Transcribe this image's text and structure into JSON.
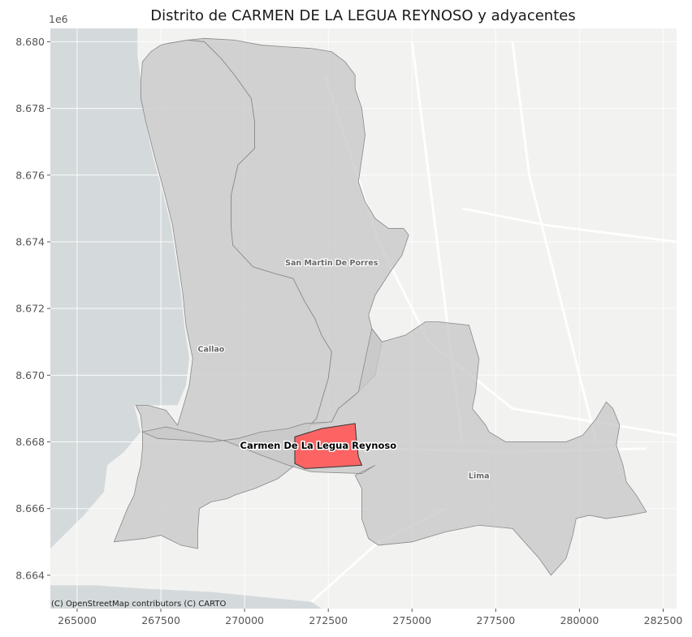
{
  "title": "Distrito de CARMEN DE LA LEGUA REYNOSO y adyacentes",
  "y_offset_label": "1e6",
  "attribution": "(C) OpenStreetMap contributors (C) CARTO",
  "axes": {
    "x_range": [
      264200,
      282900
    ],
    "y_range": [
      8663000,
      8680400
    ],
    "x_ticks": [
      {
        "value": 265000,
        "label": "265000"
      },
      {
        "value": 267500,
        "label": "267500"
      },
      {
        "value": 270000,
        "label": "270000"
      },
      {
        "value": 272500,
        "label": "272500"
      },
      {
        "value": 275000,
        "label": "275000"
      },
      {
        "value": 277500,
        "label": "277500"
      },
      {
        "value": 280000,
        "label": "280000"
      },
      {
        "value": 282500,
        "label": "282500"
      }
    ],
    "y_ticks": [
      {
        "value": 8664000,
        "label": "8.664"
      },
      {
        "value": 8666000,
        "label": "8.666"
      },
      {
        "value": 8668000,
        "label": "8.668"
      },
      {
        "value": 8670000,
        "label": "8.670"
      },
      {
        "value": 8672000,
        "label": "8.672"
      },
      {
        "value": 8674000,
        "label": "8.674"
      },
      {
        "value": 8676000,
        "label": "8.676"
      },
      {
        "value": 8678000,
        "label": "8.678"
      },
      {
        "value": 8680000,
        "label": "8.680"
      }
    ]
  },
  "colors": {
    "axes_bg": "#e5e5e5",
    "sea": "#d4dadc",
    "land": "#f2f2f1",
    "district_fill": "#c8c8c8",
    "district_edge": "#888888",
    "highlight_fill": "#ff5a5a",
    "highlight_edge": "#333333"
  },
  "districts": [
    {
      "name": "Callao",
      "label_at": [
        269000,
        8670700
      ],
      "coords": [
        [
          266100,
          8665000
        ],
        [
          266300,
          8665500
        ],
        [
          266500,
          8666000
        ],
        [
          266700,
          8666400
        ],
        [
          266800,
          8666900
        ],
        [
          266900,
          8667300
        ],
        [
          266950,
          8667800
        ],
        [
          266950,
          8668300
        ],
        [
          266900,
          8668800
        ],
        [
          266750,
          8669100
        ],
        [
          267100,
          8669100
        ],
        [
          267650,
          8668950
        ],
        [
          268000,
          8668500
        ],
        [
          268150,
          8669000
        ],
        [
          268350,
          8669700
        ],
        [
          268450,
          8670500
        ],
        [
          268250,
          8671500
        ],
        [
          268150,
          8672500
        ],
        [
          268000,
          8673500
        ],
        [
          267850,
          8674500
        ],
        [
          267600,
          8675500
        ],
        [
          267300,
          8676600
        ],
        [
          267050,
          8677600
        ],
        [
          266900,
          8678300
        ],
        [
          266900,
          8678800
        ],
        [
          266950,
          8679400
        ],
        [
          267200,
          8679700
        ],
        [
          267500,
          8679900
        ],
        [
          267700,
          8679950
        ],
        [
          268300,
          8680050
        ],
        [
          268800,
          8680000
        ],
        [
          269300,
          8679500
        ],
        [
          269700,
          8679000
        ],
        [
          270200,
          8678300
        ],
        [
          270300,
          8677600
        ],
        [
          270300,
          8676800
        ],
        [
          269800,
          8676300
        ],
        [
          269600,
          8675400
        ],
        [
          269600,
          8674400
        ],
        [
          269650,
          8673900
        ],
        [
          270250,
          8673250
        ],
        [
          270900,
          8673050
        ],
        [
          271450,
          8672900
        ],
        [
          271800,
          8672200
        ],
        [
          272100,
          8671700
        ],
        [
          272300,
          8671200
        ],
        [
          272600,
          8670700
        ],
        [
          272500,
          8669900
        ],
        [
          272350,
          8669400
        ],
        [
          272150,
          8668700
        ],
        [
          271950,
          8668500
        ],
        [
          271900,
          8668100
        ],
        [
          271800,
          8667500
        ],
        [
          271500,
          8667300
        ],
        [
          271000,
          8666900
        ],
        [
          270300,
          8666600
        ],
        [
          269700,
          8666400
        ],
        [
          269500,
          8666300
        ],
        [
          269000,
          8666200
        ],
        [
          268650,
          8666000
        ],
        [
          268600,
          8665300
        ],
        [
          268600,
          8664800
        ],
        [
          268100,
          8664900
        ],
        [
          267500,
          8665200
        ],
        [
          267000,
          8665100
        ]
      ]
    },
    {
      "name": "San Martin De Porres",
      "label_at": [
        272600,
        8673300
      ],
      "coords": [
        [
          267700,
          8679950
        ],
        [
          268300,
          8680050
        ],
        [
          268800,
          8680100
        ],
        [
          269700,
          8680050
        ],
        [
          270500,
          8679900
        ],
        [
          271200,
          8679850
        ],
        [
          272000,
          8679800
        ],
        [
          272600,
          8679700
        ],
        [
          273000,
          8679400
        ],
        [
          273300,
          8679000
        ],
        [
          273300,
          8678600
        ],
        [
          273500,
          8678000
        ],
        [
          273600,
          8677200
        ],
        [
          273500,
          8676500
        ],
        [
          273400,
          8675800
        ],
        [
          273600,
          8675200
        ],
        [
          273900,
          8674700
        ],
        [
          274300,
          8674400
        ],
        [
          274750,
          8674400
        ],
        [
          274900,
          8674200
        ],
        [
          274700,
          8673600
        ],
        [
          274350,
          8673100
        ],
        [
          273900,
          8672400
        ],
        [
          273700,
          8671800
        ],
        [
          273800,
          8671400
        ],
        [
          274100,
          8671000
        ],
        [
          273900,
          8670000
        ],
        [
          273400,
          8669500
        ],
        [
          273200,
          8669300
        ],
        [
          272800,
          8669000
        ],
        [
          272600,
          8668600
        ],
        [
          271950,
          8668500
        ],
        [
          272150,
          8668700
        ],
        [
          272350,
          8669400
        ],
        [
          272500,
          8669900
        ],
        [
          272600,
          8670700
        ],
        [
          272300,
          8671200
        ],
        [
          272100,
          8671700
        ],
        [
          271800,
          8672200
        ],
        [
          271450,
          8672900
        ],
        [
          270900,
          8673050
        ],
        [
          270250,
          8673250
        ],
        [
          269650,
          8673900
        ],
        [
          269600,
          8674400
        ],
        [
          269600,
          8675400
        ],
        [
          269800,
          8676300
        ],
        [
          270300,
          8676800
        ],
        [
          270300,
          8677600
        ],
        [
          270200,
          8678300
        ],
        [
          269700,
          8679000
        ],
        [
          269300,
          8679500
        ],
        [
          268800,
          8680000
        ],
        [
          268300,
          8680050
        ]
      ]
    },
    {
      "name": "Lima",
      "label_at": [
        277000,
        8666900
      ],
      "coords": [
        [
          266950,
          8668300
        ],
        [
          267650,
          8668450
        ],
        [
          268500,
          8668250
        ],
        [
          269500,
          8668000
        ],
        [
          270500,
          8667600
        ],
        [
          271300,
          8667300
        ],
        [
          272000,
          8667100
        ],
        [
          273500,
          8667050
        ],
        [
          273900,
          8667300
        ],
        [
          273300,
          8667000
        ],
        [
          273500,
          8666600
        ],
        [
          273500,
          8665700
        ],
        [
          273700,
          8665100
        ],
        [
          274000,
          8664900
        ],
        [
          275000,
          8665000
        ],
        [
          276000,
          8665300
        ],
        [
          277000,
          8665500
        ],
        [
          278000,
          8665400
        ],
        [
          278800,
          8664500
        ],
        [
          279150,
          8664000
        ],
        [
          279600,
          8664500
        ],
        [
          279800,
          8665200
        ],
        [
          279900,
          8665700
        ],
        [
          280300,
          8665800
        ],
        [
          280800,
          8665700
        ],
        [
          281500,
          8665800
        ],
        [
          282000,
          8665900
        ],
        [
          281700,
          8666400
        ],
        [
          281400,
          8666800
        ],
        [
          281300,
          8667300
        ],
        [
          281100,
          8667900
        ],
        [
          281200,
          8668500
        ],
        [
          281000,
          8669000
        ],
        [
          280800,
          8669200
        ],
        [
          280500,
          8668700
        ],
        [
          280100,
          8668200
        ],
        [
          279600,
          8668000
        ],
        [
          278500,
          8668000
        ],
        [
          277800,
          8668000
        ],
        [
          277300,
          8668300
        ],
        [
          277200,
          8668500
        ],
        [
          276800,
          8669000
        ],
        [
          276900,
          8669500
        ],
        [
          277000,
          8670500
        ],
        [
          276700,
          8671500
        ],
        [
          275800,
          8671600
        ],
        [
          275400,
          8671600
        ],
        [
          274800,
          8671200
        ],
        [
          274100,
          8671000
        ],
        [
          273800,
          8671400
        ],
        [
          273400,
          8669500
        ],
        [
          272800,
          8669000
        ],
        [
          272600,
          8668600
        ],
        [
          271800,
          8668550
        ],
        [
          271300,
          8668400
        ],
        [
          270500,
          8668300
        ],
        [
          269800,
          8668100
        ],
        [
          269000,
          8668000
        ],
        [
          268300,
          8668050
        ],
        [
          267400,
          8668100
        ]
      ]
    }
  ],
  "highlight": {
    "name": "Carmen De La Legua Reynoso",
    "label_at": [
      272200,
      8667800
    ],
    "coords": [
      [
        271500,
        8668150
      ],
      [
        272300,
        8668400
      ],
      [
        273300,
        8668550
      ],
      [
        273350,
        8667950
      ],
      [
        273400,
        8667550
      ],
      [
        273500,
        8667300
      ],
      [
        272700,
        8667250
      ],
      [
        271800,
        8667200
      ],
      [
        271500,
        8667350
      ]
    ]
  }
}
